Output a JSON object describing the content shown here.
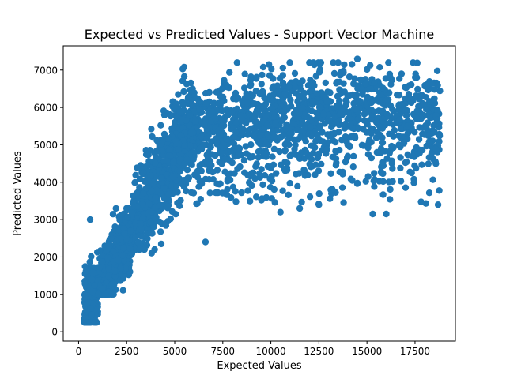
{
  "chart_data": {
    "type": "scatter",
    "title": "Expected vs Predicted Values - Support Vector Machine",
    "xlabel": "Expected Values",
    "ylabel": "Predicted Values",
    "xlim": [
      -800,
      19600
    ],
    "ylim": [
      -250,
      7650
    ],
    "x_ticks": [
      0,
      2500,
      5000,
      7500,
      10000,
      12500,
      15000,
      17500
    ],
    "y_ticks": [
      0,
      1000,
      2000,
      3000,
      4000,
      5000,
      6000,
      7000
    ],
    "x_tick_labels": [
      "0",
      "2500",
      "5000",
      "7500",
      "10000",
      "12500",
      "15000",
      "17500"
    ],
    "y_tick_labels": [
      "0",
      "1000",
      "2000",
      "3000",
      "4000",
      "5000",
      "6000",
      "7000"
    ],
    "grid": false,
    "legend": "none",
    "marker_color": "#1f77b4",
    "outliers": [
      {
        "x": 6600,
        "y": 2400
      },
      {
        "x": 3800,
        "y": 2100
      },
      {
        "x": 4300,
        "y": 2350
      },
      {
        "x": 600,
        "y": 3000
      },
      {
        "x": 18700,
        "y": 3400
      },
      {
        "x": 15300,
        "y": 3150
      },
      {
        "x": 16000,
        "y": 3150
      },
      {
        "x": 11500,
        "y": 3300
      },
      {
        "x": 12500,
        "y": 3400
      },
      {
        "x": 10500,
        "y": 3200
      },
      {
        "x": 14500,
        "y": 7300
      },
      {
        "x": 17400,
        "y": 7200
      },
      {
        "x": 13500,
        "y": 7200
      },
      {
        "x": 9900,
        "y": 7150
      }
    ]
  }
}
